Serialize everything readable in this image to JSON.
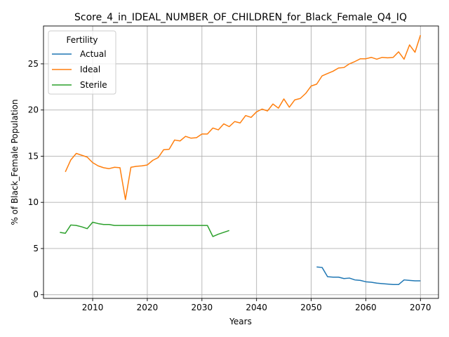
{
  "chart_data": {
    "type": "line",
    "title": "Score_4_in_IDEAL_NUMBER_OF_CHILDREN_for_Black_Female_Q4_IQ",
    "xlabel": "Years",
    "ylabel": "% of Black_Female Population",
    "xlim": [
      2001,
      2073.3
    ],
    "ylim": [
      -0.4,
      29.1
    ],
    "xticks": [
      2010,
      2020,
      2030,
      2040,
      2050,
      2060,
      2070
    ],
    "yticks": [
      0,
      5,
      10,
      15,
      20,
      25
    ],
    "grid": true,
    "legend": {
      "title": "Fertility",
      "placement": "top-left"
    },
    "series": [
      {
        "name": "Actual",
        "color": "#1f77b4",
        "x": [
          2051,
          2052,
          2053,
          2054,
          2055,
          2056,
          2057,
          2058,
          2059,
          2060,
          2061,
          2062,
          2063,
          2064,
          2065,
          2066,
          2067,
          2068,
          2069,
          2070
        ],
        "y": [
          3.0,
          2.95,
          1.95,
          1.9,
          1.9,
          1.75,
          1.8,
          1.6,
          1.55,
          1.4,
          1.35,
          1.25,
          1.2,
          1.15,
          1.1,
          1.1,
          1.6,
          1.55,
          1.5,
          1.5
        ]
      },
      {
        "name": "Ideal",
        "color": "#ff7f0e",
        "x": [
          2005,
          2006,
          2007,
          2008,
          2009,
          2010,
          2011,
          2012,
          2013,
          2014,
          2015,
          2016,
          2017,
          2018,
          2019,
          2020,
          2021,
          2022,
          2023,
          2024,
          2025,
          2026,
          2027,
          2028,
          2029,
          2030,
          2031,
          2032,
          2033,
          2034,
          2035,
          2036,
          2037,
          2038,
          2039,
          2040,
          2041,
          2042,
          2043,
          2044,
          2045,
          2046,
          2047,
          2048,
          2049,
          2050,
          2051,
          2052,
          2053,
          2054,
          2055,
          2056,
          2057,
          2058,
          2059,
          2060,
          2061,
          2062,
          2063,
          2064,
          2065,
          2066,
          2067,
          2068,
          2069,
          2070
        ],
        "y": [
          13.3,
          14.6,
          15.3,
          15.1,
          14.9,
          14.3,
          13.95,
          13.75,
          13.65,
          13.8,
          13.75,
          10.3,
          13.8,
          13.9,
          13.95,
          14.05,
          14.55,
          14.85,
          15.7,
          15.75,
          16.75,
          16.65,
          17.15,
          16.95,
          17.0,
          17.4,
          17.4,
          18.05,
          17.85,
          18.5,
          18.2,
          18.75,
          18.6,
          19.4,
          19.2,
          19.8,
          20.1,
          19.9,
          20.65,
          20.2,
          21.2,
          20.3,
          21.1,
          21.25,
          21.8,
          22.6,
          22.8,
          23.7,
          23.95,
          24.2,
          24.55,
          24.6,
          25.0,
          25.25,
          25.55,
          25.55,
          25.7,
          25.5,
          25.7,
          25.65,
          25.7,
          26.3,
          25.5,
          27.05,
          26.25,
          28.1
        ]
      },
      {
        "name": "Sterile",
        "color": "#2ca02c",
        "x": [
          2004,
          2005,
          2006,
          2007,
          2008,
          2009,
          2010,
          2011,
          2012,
          2013,
          2014,
          2015,
          2016,
          2017,
          2018,
          2019,
          2020,
          2021,
          2022,
          2023,
          2024,
          2025,
          2026,
          2027,
          2028,
          2029,
          2030,
          2031,
          2032,
          2033,
          2034,
          2035
        ],
        "y": [
          6.75,
          6.65,
          7.55,
          7.5,
          7.35,
          7.15,
          7.85,
          7.7,
          7.6,
          7.6,
          7.5,
          7.5,
          7.5,
          7.5,
          7.5,
          7.5,
          7.5,
          7.5,
          7.5,
          7.5,
          7.5,
          7.5,
          7.5,
          7.5,
          7.5,
          7.5,
          7.5,
          7.5,
          6.3,
          6.55,
          6.75,
          6.95
        ]
      }
    ]
  }
}
